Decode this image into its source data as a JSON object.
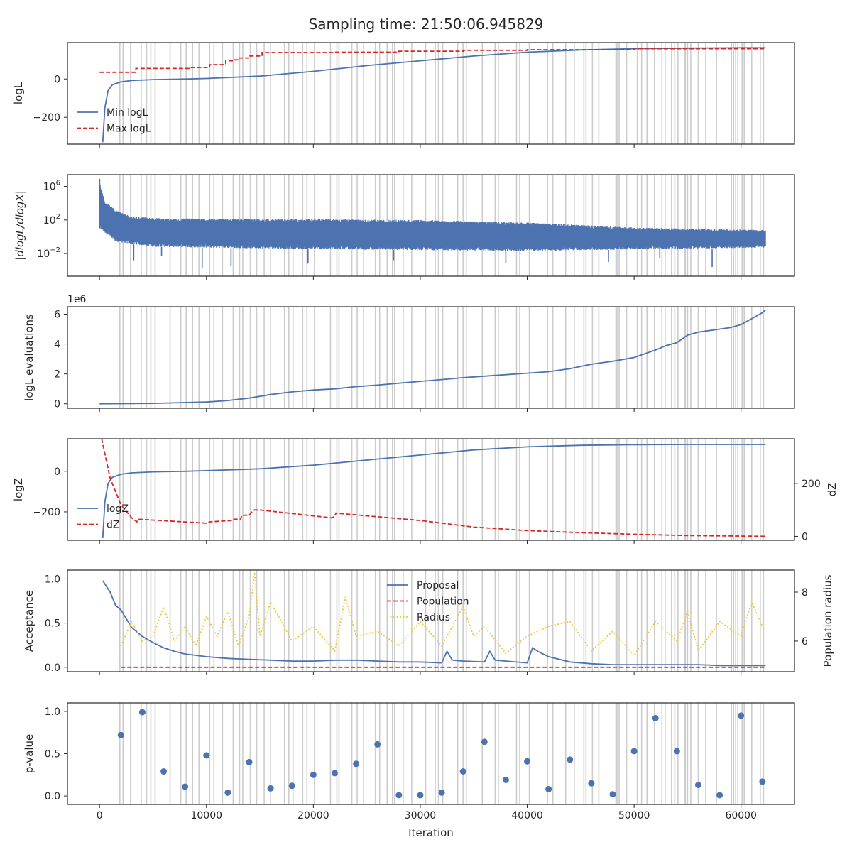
{
  "figure": {
    "title": "Sampling time: 21:50:06.945829",
    "xlabel": "Iteration",
    "xlim": [
      -3000,
      65000
    ],
    "xticks": [
      0,
      10000,
      20000,
      30000,
      40000,
      50000,
      60000
    ],
    "xtick_labels": [
      "0",
      "10000",
      "20000",
      "30000",
      "40000",
      "50000",
      "60000"
    ]
  },
  "colors": {
    "blue": "#4c72b0",
    "red": "#d62728",
    "yellow": "#f2c83b",
    "gray_lines": "#cccccc",
    "axes": "#262626"
  },
  "chart_data": [
    {
      "id": "logL",
      "type": "line",
      "ylabel": "logL",
      "ylim": [
        -340,
        190
      ],
      "yticks": [
        0,
        -200
      ],
      "ytick_labels": [
        "0",
        "−200"
      ],
      "legend_position": "lower-left",
      "series": [
        {
          "name": "Min logL",
          "color": "#4c72b0",
          "style": "solid",
          "x": [
            300,
            500,
            800,
            1200,
            2000,
            3000,
            5000,
            8000,
            10000,
            15000,
            20000,
            25000,
            30000,
            35000,
            40000,
            45000,
            50000,
            55000,
            60000,
            62300
          ],
          "y": [
            -330,
            -150,
            -60,
            -30,
            -15,
            -8,
            -3,
            0,
            3,
            15,
            40,
            70,
            95,
            120,
            140,
            152,
            158,
            161,
            163,
            163
          ]
        },
        {
          "name": "Max logL",
          "color": "#d62728",
          "style": "dashed",
          "x": [
            0,
            3400,
            3400,
            8500,
            8500,
            10300,
            10300,
            11800,
            11800,
            12500,
            12500,
            13000,
            13000,
            14000,
            14000,
            15200,
            15200,
            22000,
            22000,
            28000,
            28000,
            34000,
            34000,
            40000,
            40000,
            50000,
            50000,
            62300
          ],
          "y": [
            35,
            35,
            55,
            55,
            60,
            60,
            75,
            75,
            95,
            95,
            100,
            100,
            110,
            110,
            120,
            120,
            138,
            138,
            140,
            140,
            145,
            145,
            150,
            150,
            153,
            153,
            158,
            158
          ]
        }
      ]
    },
    {
      "id": "dlogL",
      "type": "line",
      "ylabel": "|dlogL/dlogX|",
      "yscale": "log",
      "ylim": [
        -4.7,
        7.4
      ],
      "yticks": [
        6,
        2,
        -2
      ],
      "ytick_labels": [
        "10",
        "10",
        "10"
      ],
      "ytick_exponents": [
        "6",
        "2",
        "−2"
      ],
      "series": [
        {
          "name": "",
          "color": "#4c72b0",
          "style": "solid",
          "envelope_upper_log10": [
            [
              0,
              6.5
            ],
            [
              500,
              4.2
            ],
            [
              1500,
              3.2
            ],
            [
              3000,
              2.4
            ],
            [
              6000,
              2.2
            ],
            [
              30000,
              2.0
            ],
            [
              40000,
              1.7
            ],
            [
              50000,
              1.1
            ],
            [
              62300,
              0.8
            ]
          ],
          "envelope_lower_log10": [
            [
              0,
              1.0
            ],
            [
              1500,
              -0.6
            ],
            [
              5000,
              -1.2
            ],
            [
              20000,
              -1.5
            ],
            [
              40000,
              -1.7
            ],
            [
              62300,
              -1.3
            ]
          ],
          "deep_dips_log10": [
            [
              3200,
              -2.8
            ],
            [
              5800,
              -2.3
            ],
            [
              9600,
              -3.7
            ],
            [
              12300,
              -3.5
            ],
            [
              19500,
              -3.2
            ],
            [
              27500,
              -2.8
            ],
            [
              38000,
              -3.1
            ],
            [
              47600,
              -3.0
            ],
            [
              52400,
              -2.6
            ],
            [
              57300,
              -3.6
            ]
          ]
        }
      ]
    },
    {
      "id": "evals",
      "type": "line",
      "ylabel": "logL evaluations",
      "y_offset_label": "1e6",
      "ylim": [
        -0.3,
        6.5
      ],
      "yticks": [
        0,
        2,
        4,
        6
      ],
      "ytick_labels": [
        "0",
        "2",
        "4",
        "6"
      ],
      "series": [
        {
          "name": "",
          "color": "#4c72b0",
          "style": "solid",
          "x": [
            0,
            5000,
            10000,
            12000,
            14000,
            15000,
            16000,
            18000,
            20000,
            22000,
            24000,
            26000,
            28000,
            30000,
            32000,
            34000,
            36000,
            38000,
            40000,
            42000,
            44000,
            45000,
            46000,
            47000,
            48000,
            50000,
            52000,
            53000,
            54000,
            55000,
            56000,
            58000,
            59000,
            60000,
            61000,
            62000,
            62300
          ],
          "y": [
            0,
            0.03,
            0.12,
            0.22,
            0.38,
            0.5,
            0.62,
            0.8,
            0.92,
            1.0,
            1.15,
            1.25,
            1.38,
            1.5,
            1.62,
            1.75,
            1.85,
            1.95,
            2.05,
            2.15,
            2.35,
            2.5,
            2.65,
            2.75,
            2.85,
            3.1,
            3.6,
            3.9,
            4.1,
            4.6,
            4.8,
            5.0,
            5.1,
            5.3,
            5.7,
            6.1,
            6.3
          ]
        }
      ]
    },
    {
      "id": "logZ",
      "type": "line",
      "ylabel": "logZ",
      "ylim": [
        -340,
        160
      ],
      "yticks": [
        0,
        -200
      ],
      "ytick_labels": [
        "0",
        "−200"
      ],
      "y2label": "dZ",
      "y2lim": [
        -15,
        370
      ],
      "y2ticks": [
        0,
        200
      ],
      "y2tick_labels": [
        "0",
        "200"
      ],
      "legend_position": "lower-left",
      "series": [
        {
          "name": "logZ",
          "color": "#4c72b0",
          "style": "solid",
          "axis": "left",
          "x": [
            300,
            500,
            800,
            1200,
            2000,
            3000,
            5000,
            8000,
            10000,
            15000,
            20000,
            25000,
            30000,
            35000,
            40000,
            45000,
            50000,
            55000,
            60000,
            62300
          ],
          "y": [
            -330,
            -150,
            -60,
            -30,
            -15,
            -8,
            -3,
            0,
            3,
            12,
            30,
            55,
            80,
            105,
            120,
            128,
            131,
            132,
            132,
            132
          ]
        },
        {
          "name": "dZ",
          "color": "#d62728",
          "style": "dashed",
          "axis": "right",
          "x": [
            200,
            1000,
            2000,
            3000,
            3500,
            3600,
            10000,
            10300,
            12400,
            12500,
            13200,
            13300,
            14000,
            14300,
            14500,
            15000,
            21700,
            22000,
            22100,
            30000,
            35000,
            40000,
            45000,
            50000,
            55000,
            62300
          ],
          "y": [
            370,
            220,
            120,
            70,
            55,
            65,
            50,
            55,
            60,
            65,
            65,
            80,
            80,
            95,
            100,
            100,
            70,
            75,
            88,
            60,
            35,
            22,
            14,
            8,
            3,
            0
          ]
        }
      ]
    },
    {
      "id": "acceptance",
      "type": "line",
      "ylabel": "Acceptance",
      "ylim": [
        -0.05,
        1.1
      ],
      "yticks": [
        0.0,
        0.5,
        1.0
      ],
      "ytick_labels": [
        "0.0",
        "0.5",
        "1.0"
      ],
      "y2label": "Population radius",
      "y2lim": [
        4.75,
        8.9
      ],
      "y2ticks": [
        6,
        8
      ],
      "y2tick_labels": [
        "6",
        "8"
      ],
      "legend_position": "upper-center",
      "series": [
        {
          "name": "Proposal",
          "color": "#4c72b0",
          "style": "solid",
          "axis": "left",
          "x": [
            300,
            1000,
            1500,
            2000,
            2500,
            3000,
            3500,
            4000,
            5000,
            6000,
            7000,
            8000,
            10000,
            12000,
            14000,
            16000,
            18000,
            20000,
            22000,
            24000,
            26000,
            28000,
            30000,
            32000,
            32500,
            33000,
            34000,
            36000,
            36500,
            37000,
            38000,
            40000,
            40500,
            41000,
            42000,
            44000,
            46000,
            48000,
            50000,
            52000,
            54000,
            56000,
            58000,
            60000,
            62300
          ],
          "y": [
            0.98,
            0.85,
            0.7,
            0.65,
            0.55,
            0.45,
            0.4,
            0.35,
            0.28,
            0.22,
            0.18,
            0.15,
            0.12,
            0.1,
            0.09,
            0.08,
            0.07,
            0.07,
            0.08,
            0.08,
            0.07,
            0.06,
            0.06,
            0.05,
            0.18,
            0.08,
            0.07,
            0.06,
            0.18,
            0.08,
            0.07,
            0.05,
            0.22,
            0.18,
            0.12,
            0.06,
            0.04,
            0.03,
            0.03,
            0.03,
            0.03,
            0.03,
            0.02,
            0.02,
            0.02
          ]
        },
        {
          "name": "Population",
          "color": "#d62728",
          "style": "dashed",
          "axis": "left",
          "x": [
            2000,
            62300
          ],
          "y": [
            0.0,
            0.0
          ]
        },
        {
          "name": "Radius",
          "color": "#f2c83b",
          "style": "dotted",
          "axis": "right",
          "x": [
            2000,
            3000,
            4000,
            5000,
            6000,
            7000,
            8000,
            9000,
            10000,
            11000,
            12000,
            13000,
            14000,
            14500,
            15000,
            16000,
            18000,
            20000,
            22000,
            23000,
            24000,
            26000,
            28000,
            30000,
            32000,
            34000,
            35000,
            36000,
            38000,
            40000,
            42000,
            44000,
            46000,
            48000,
            50000,
            52000,
            54000,
            55000,
            56000,
            58000,
            60000,
            61000,
            62000,
            62300
          ],
          "y": [
            5.8,
            6.8,
            6.0,
            6.2,
            7.4,
            6.0,
            6.6,
            5.8,
            7.0,
            6.2,
            7.2,
            5.8,
            7.0,
            8.8,
            6.2,
            7.6,
            6.0,
            6.6,
            5.6,
            7.8,
            6.2,
            6.4,
            5.8,
            6.8,
            5.8,
            7.4,
            6.2,
            6.6,
            5.5,
            6.2,
            6.6,
            6.8,
            5.6,
            6.4,
            5.4,
            6.8,
            6.0,
            7.2,
            5.6,
            6.8,
            6.2,
            7.6,
            6.6,
            6.4
          ]
        }
      ]
    },
    {
      "id": "pvalue",
      "type": "scatter",
      "ylabel": "p-value",
      "ylim": [
        -0.1,
        1.1
      ],
      "yticks": [
        0.0,
        0.5,
        1.0
      ],
      "ytick_labels": [
        "0.0",
        "0.5",
        "1.0"
      ],
      "series": [
        {
          "name": "",
          "color": "#4c72b0",
          "x": [
            2000,
            4000,
            6000,
            8000,
            10000,
            12000,
            14000,
            16000,
            18000,
            20000,
            22000,
            24000,
            26000,
            28000,
            30000,
            32000,
            34000,
            36000,
            38000,
            40000,
            42000,
            44000,
            46000,
            48000,
            50000,
            52000,
            54000,
            56000,
            58000,
            60000,
            62000
          ],
          "y": [
            0.72,
            0.99,
            0.29,
            0.11,
            0.48,
            0.04,
            0.4,
            0.09,
            0.12,
            0.25,
            0.27,
            0.38,
            0.61,
            0.01,
            0.01,
            0.04,
            0.29,
            0.64,
            0.19,
            0.41,
            0.08,
            0.43,
            0.15,
            0.02,
            0.53,
            0.92,
            0.53,
            0.13,
            0.01,
            0.95,
            0.17
          ]
        }
      ]
    }
  ],
  "gray_vertical_lines_x": [
    1900,
    2200,
    2900,
    3900,
    4400,
    4800,
    5200,
    6600,
    7600,
    8100,
    8700,
    9300,
    10300,
    10700,
    11500,
    12500,
    13100,
    13400,
    14100,
    14700,
    15400,
    16000,
    17300,
    17700,
    18100,
    19000,
    19400,
    20100,
    21600,
    22200,
    22400,
    23600,
    24100,
    24700,
    25800,
    26200,
    26900,
    27400,
    27600,
    28400,
    29200,
    30500,
    31400,
    31700,
    32100,
    33500,
    34000,
    34300,
    35800,
    37000,
    37300,
    39000,
    39300,
    40200,
    41900,
    42400,
    43600,
    44400,
    45300,
    45500,
    46100,
    46700,
    48300,
    48400,
    48600,
    49300,
    50300,
    50700,
    51200,
    51900,
    52600,
    52900,
    53500,
    53800,
    54100,
    54700,
    54800,
    55000,
    55300,
    56000,
    56700,
    57700,
    59100,
    59300,
    59500,
    59700,
    60100,
    60300,
    61000,
    61800,
    62100
  ]
}
